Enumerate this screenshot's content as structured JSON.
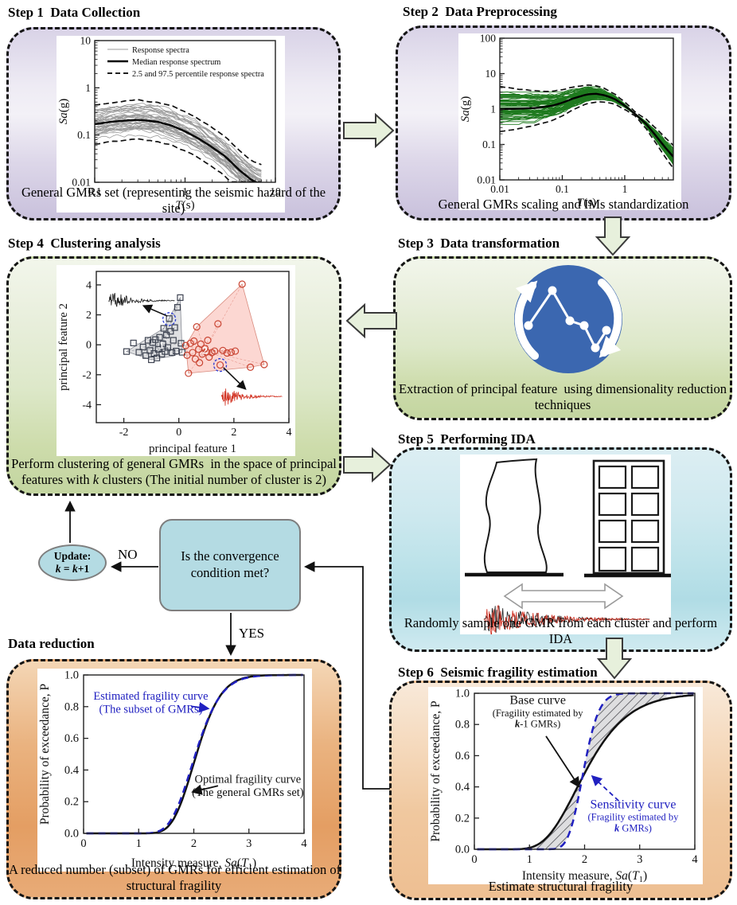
{
  "steps": {
    "step1": {
      "title": "Step 1  Data Collection",
      "caption": "General GMRs set (representing the seismic hazard of the site)"
    },
    "step2": {
      "title": "Step 2  Data Preprocessing",
      "caption": "General GMRs scaling and IMs standardization"
    },
    "step3": {
      "title": "Step 3  Data transformation",
      "caption_line1": "Extraction of principal feature  using dimensionality reduction",
      "caption_line2": "techniques"
    },
    "step4": {
      "title": "Step 4  Clustering analysis",
      "caption_line1": "Perform clustering of general GMRs  in the space of principal",
      "caption_line2a": "features with ",
      "caption_k": "k",
      "caption_line2b": " clusters (The initial number of cluster is 2)"
    },
    "step5": {
      "title": "Step 5  Performing IDA",
      "caption": "Randomly sample one GMR from each cluster and perform IDA"
    },
    "step6": {
      "title": "Step 6  Seismic fragility estimation",
      "caption": "Estimate structural fragility"
    },
    "data_reduction": {
      "title": "Data reduction",
      "caption_line1": "A reduced number (subset) of GMRs for efficient estimation of",
      "caption_line2": "structural fragility"
    }
  },
  "flow": {
    "decision_text": "Is the convergence condition met?",
    "no_label": "NO",
    "yes_label": "YES",
    "update_label": "Update:",
    "update_k": "k",
    "update_eq": " = ",
    "update_plus": "+1"
  },
  "chart_data": [
    {
      "id": "step1_spectra",
      "type": "line",
      "xscale": "log",
      "yscale": "log",
      "xlabel_it": "T",
      "xlabel_rest": "(s)",
      "ylabel_it": "Sa",
      "ylabel_rest": "(g)",
      "xlim": [
        0.1,
        10
      ],
      "ylim": [
        0.01,
        10
      ],
      "xticks": [
        0.1,
        1,
        10
      ],
      "yticks": [
        0.01,
        0.1,
        1,
        10
      ],
      "legend": [
        "Response spectra",
        "Median response spectrum",
        "2.5 and 97.5 percentile response spectra"
      ],
      "n_records": 40,
      "seed": 42,
      "median": [
        [
          0.1,
          0.17
        ],
        [
          0.15,
          0.19
        ],
        [
          0.2,
          0.2
        ],
        [
          0.3,
          0.21
        ],
        [
          0.4,
          0.2
        ],
        [
          0.5,
          0.19
        ],
        [
          0.7,
          0.16
        ],
        [
          1.0,
          0.12
        ],
        [
          1.4,
          0.085
        ],
        [
          2.0,
          0.055
        ],
        [
          2.8,
          0.035
        ],
        [
          4.0,
          0.018
        ],
        [
          5.5,
          0.011
        ],
        [
          7.0,
          0.009
        ]
      ]
    },
    {
      "id": "step2_spectra",
      "type": "line",
      "xscale": "log",
      "yscale": "log",
      "xlabel_it": "T",
      "xlabel_rest": "(s)",
      "ylabel_it": "Sa",
      "ylabel_rest": "(g)",
      "xlim": [
        0.01,
        6
      ],
      "ylim": [
        0.01,
        100
      ],
      "xticks": [
        0.01,
        0.1,
        1
      ],
      "yticks": [
        0.01,
        0.1,
        1,
        10,
        100
      ],
      "n_records": 75,
      "seed": 7,
      "anchor_period": 1.5,
      "median": [
        [
          0.01,
          1.0
        ],
        [
          0.02,
          1.02
        ],
        [
          0.04,
          1.08
        ],
        [
          0.07,
          1.25
        ],
        [
          0.1,
          1.5
        ],
        [
          0.15,
          2.0
        ],
        [
          0.25,
          2.6
        ],
        [
          0.35,
          2.7
        ],
        [
          0.5,
          2.4
        ],
        [
          0.7,
          1.9
        ],
        [
          1.0,
          1.25
        ],
        [
          1.5,
          0.7
        ],
        [
          2.2,
          0.38
        ],
        [
          3.2,
          0.17
        ],
        [
          4.5,
          0.08
        ],
        [
          6.0,
          0.045
        ]
      ]
    },
    {
      "id": "step4_scatter",
      "type": "scatter",
      "xlabel": "principal feature 1",
      "ylabel": "principal feature 2",
      "xlim": [
        -3,
        4
      ],
      "ylim": [
        -5.2,
        4.9
      ],
      "xticks": [
        -2,
        0,
        2,
        4
      ],
      "yticks": [
        -4,
        -2,
        0,
        2,
        4
      ],
      "clusters": [
        {
          "name": "cluster-1",
          "marker": "square",
          "label": "1",
          "color": "#3c4250",
          "hull_fill": "rgba(150,152,160,0.30)",
          "hull_stroke": "#8a8d96",
          "centroid": [
            -0.62,
            -0.05
          ],
          "points": [
            [
              -1.9,
              -0.45
            ],
            [
              -1.65,
              0.12
            ],
            [
              -1.45,
              -0.5
            ],
            [
              -1.3,
              -0.15
            ],
            [
              -1.2,
              -0.72
            ],
            [
              -1.12,
              0.3
            ],
            [
              -1.05,
              -0.38
            ],
            [
              -1.0,
              -1.0
            ],
            [
              -0.95,
              0.15
            ],
            [
              -0.9,
              -0.58
            ],
            [
              -0.85,
              0.35
            ],
            [
              -0.8,
              -0.88
            ],
            [
              -0.75,
              -0.3
            ],
            [
              -0.7,
              0.5
            ],
            [
              -0.62,
              -0.62
            ],
            [
              -0.58,
              0.05
            ],
            [
              -0.55,
              1.1
            ],
            [
              -0.5,
              -0.45
            ],
            [
              -0.45,
              0.65
            ],
            [
              -0.4,
              -0.18
            ],
            [
              -0.35,
              1.75
            ],
            [
              -0.3,
              0.9
            ],
            [
              -0.25,
              -0.52
            ],
            [
              -0.2,
              0.3
            ],
            [
              -0.15,
              1.15
            ],
            [
              -0.1,
              -0.42
            ],
            [
              -0.05,
              2.5
            ],
            [
              0.05,
              3.15
            ],
            [
              0.08,
              0.1
            ],
            [
              0.12,
              -0.5
            ]
          ],
          "hull": [
            [
              -1.9,
              -0.45
            ],
            [
              -1.0,
              -1.0
            ],
            [
              -0.2,
              -0.75
            ],
            [
              0.12,
              -0.5
            ],
            [
              0.05,
              3.15
            ],
            [
              -0.55,
              1.1
            ]
          ],
          "highlight": [
            -0.35,
            1.72
          ]
        },
        {
          "name": "cluster-2",
          "marker": "circle",
          "label": "2",
          "color": "#c94432",
          "hull_fill": "rgba(246,150,138,0.38)",
          "hull_stroke": "#d98b7e",
          "centroid": [
            0.95,
            -0.4
          ],
          "points": [
            [
              0.25,
              -0.05
            ],
            [
              0.3,
              -0.7
            ],
            [
              0.35,
              -1.9
            ],
            [
              0.42,
              0.1
            ],
            [
              0.5,
              -0.52
            ],
            [
              0.55,
              0.25
            ],
            [
              0.6,
              -0.95
            ],
            [
              0.65,
              1.2
            ],
            [
              0.72,
              -0.3
            ],
            [
              0.75,
              -1.2
            ],
            [
              0.8,
              0.05
            ],
            [
              0.85,
              -0.62
            ],
            [
              0.95,
              -0.25
            ],
            [
              1.0,
              -0.48
            ],
            [
              1.05,
              0.3
            ],
            [
              1.1,
              -0.82
            ],
            [
              1.2,
              -0.52
            ],
            [
              1.3,
              -0.42
            ],
            [
              1.42,
              1.4
            ],
            [
              1.5,
              -1.35
            ],
            [
              1.6,
              -0.38
            ],
            [
              1.75,
              -0.55
            ],
            [
              1.9,
              -0.5
            ],
            [
              2.05,
              -0.42
            ],
            [
              2.3,
              4.05
            ],
            [
              2.6,
              -1.5
            ],
            [
              3.1,
              -1.32
            ]
          ],
          "hull": [
            [
              0.35,
              -1.9
            ],
            [
              2.6,
              -1.5
            ],
            [
              3.1,
              -1.32
            ],
            [
              2.3,
              4.05
            ],
            [
              0.65,
              1.2
            ],
            [
              0.25,
              -0.05
            ]
          ],
          "highlight": [
            1.5,
            -1.35
          ]
        }
      ],
      "waveforms": [
        {
          "color": "#1a1a1a",
          "x": [
            -2.55,
            -0.15
          ],
          "y": 2.95,
          "amp": 0.85,
          "seed": 3
        },
        {
          "color": "#d23222",
          "x": [
            1.55,
            3.75
          ],
          "y": -3.45,
          "amp": 0.9,
          "seed": 9
        }
      ],
      "arrows": [
        {
          "from": [
            -0.42,
            1.92
          ],
          "to": [
            -1.28,
            2.6
          ]
        },
        {
          "from": [
            1.62,
            -1.52
          ],
          "to": [
            2.42,
            -2.95
          ]
        }
      ]
    },
    {
      "id": "reduction_fragility",
      "type": "line",
      "xlabel_prefix": "Intensity measure, ",
      "xlabel_sa": "Sa",
      "xlabel_t": "T",
      "xlabel_sub": "1",
      "ylabel": "Probability of exceedance, P",
      "xlim": [
        0,
        4
      ],
      "ylim": [
        0,
        1
      ],
      "xticks": [
        0,
        1,
        2,
        3,
        4
      ],
      "yticks": [
        0,
        0.2,
        0.4,
        0.6,
        0.8,
        1
      ],
      "curves": [
        {
          "name": "Optimal fragility curve (The general GMRs set)",
          "color": "#111111",
          "style": "solid",
          "median": 2.05,
          "beta": 0.17
        },
        {
          "name": "Estimated fragility curve (The subset of GMRs)",
          "color": "#2020c0",
          "style": "dashed",
          "median": 2.03,
          "beta": 0.18
        }
      ],
      "ann": {
        "est_l1": "Estimated fragility curve",
        "est_l2": "(The subset of GMRs)",
        "opt_l1": "Optimal fragility curve",
        "opt_l2": "(The general GMRs set)"
      }
    },
    {
      "id": "step6_fragility",
      "type": "line",
      "xlabel_prefix": "Intensity measure, ",
      "xlabel_sa": "Sa",
      "xlabel_t": "T",
      "xlabel_sub": "1",
      "ylabel": "Probability of exceedance, P",
      "xlim": [
        0,
        4
      ],
      "ylim": [
        0,
        1
      ],
      "xticks": [
        0,
        1,
        2,
        3,
        4
      ],
      "yticks": [
        0,
        0.2,
        0.4,
        0.6,
        0.8,
        1
      ],
      "curves": [
        {
          "name": "Base curve (Fragility estimated by k-1 GMRs)",
          "color": "#111111",
          "style": "solid",
          "median": 2.02,
          "beta": 0.3
        },
        {
          "name": "Sensitivity curve (Fragility estimated by k GMRs)",
          "color": "#2020c0",
          "style": "dashed",
          "median": 1.98,
          "beta": 0.11
        }
      ],
      "ann": {
        "base_l1": "Base curve",
        "base_l2": "(Fragility estimated by",
        "base_k": "k",
        "base_k_rest": "-1 GMRs)",
        "sens_l1": "Sensitivity curve",
        "sens_l2": "(Fragility estimated by",
        "sens_k": "k",
        "sens_k_rest": " GMRs)"
      }
    }
  ]
}
